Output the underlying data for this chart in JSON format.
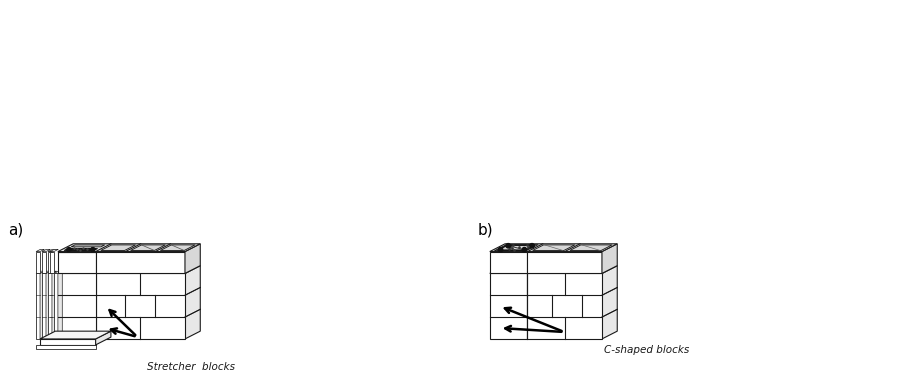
{
  "fig_width": 9.16,
  "fig_height": 3.86,
  "dpi": 100,
  "background_color": "#ffffff",
  "label_a": "a)",
  "label_b": "b)",
  "annotation_stretcher": "Stretcher  blocks",
  "annotation_cshaped": "C-shaped blocks",
  "fc_white": "#ffffff",
  "fc_light": "#f5f5f5",
  "fc_mid": "#e8e8e8",
  "fc_dark": "#d8d8d8",
  "fc_darker": "#c8c8c8",
  "lc": "#1a1a1a",
  "lw": 0.8
}
